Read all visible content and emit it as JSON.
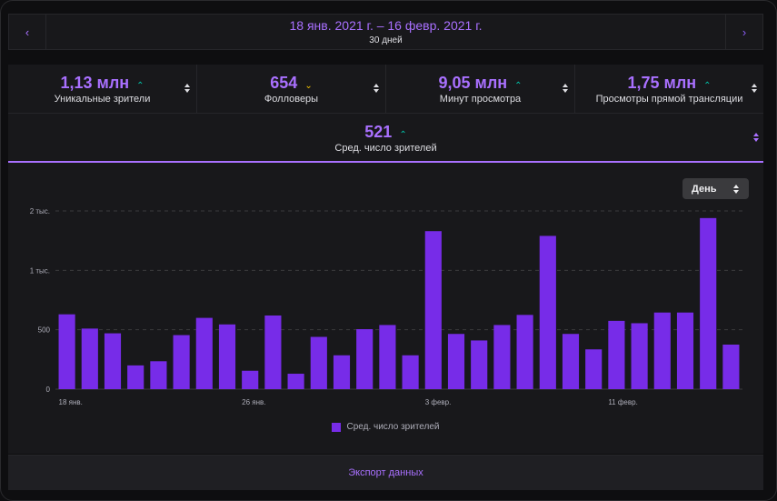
{
  "date_range": {
    "prev_icon": "chevron-left",
    "next_icon": "chevron-right",
    "label": "18 янв. 2021 г. – 16 февр. 2021 г.",
    "duration": "30 дней"
  },
  "stats": [
    {
      "value": "1,13 млн",
      "trend": "up",
      "label": "Уникальные зрители"
    },
    {
      "value": "654",
      "trend": "down",
      "label": "Фолловеры"
    },
    {
      "value": "9,05 млн",
      "trend": "up",
      "label": "Минут просмотра"
    },
    {
      "value": "1,75 млн",
      "trend": "up",
      "label": "Просмотры прямой трансляции"
    }
  ],
  "selected_metric": {
    "value": "521",
    "trend": "up",
    "label": "Сред. число зрителей"
  },
  "interval_select": {
    "value": "День"
  },
  "legend_label": "Сред. число зрителей",
  "export_label": "Экспорт данных",
  "colors": {
    "accent": "#a970ff",
    "bar": "#772ce8",
    "trend_up": "#00c7ac",
    "trend_down": "#f5c400"
  },
  "chart_data": {
    "type": "bar",
    "series": [
      {
        "name": "Сред. число зрителей",
        "values": [
          630,
          510,
          470,
          200,
          235,
          455,
          600,
          545,
          155,
          620,
          130,
          440,
          285,
          505,
          540,
          285,
          1330,
          465,
          410,
          540,
          625,
          1290,
          465,
          335,
          575,
          555,
          645,
          645,
          1440,
          375
        ]
      }
    ],
    "x_ticks": [
      {
        "index": 0,
        "label": "18 янв."
      },
      {
        "index": 8,
        "label": "26 янв."
      },
      {
        "index": 16,
        "label": "3 февр."
      },
      {
        "index": 24,
        "label": "11 февр."
      }
    ],
    "y_ticks": [
      {
        "value": 0,
        "label": "0"
      },
      {
        "value": 500,
        "label": "500"
      },
      {
        "value": 1000,
        "label": "1 тыс."
      },
      {
        "value": 1500,
        "label": "2 тыс."
      }
    ],
    "ylim": [
      0,
      1500
    ],
    "grid": true,
    "legend": "bottom-center"
  }
}
